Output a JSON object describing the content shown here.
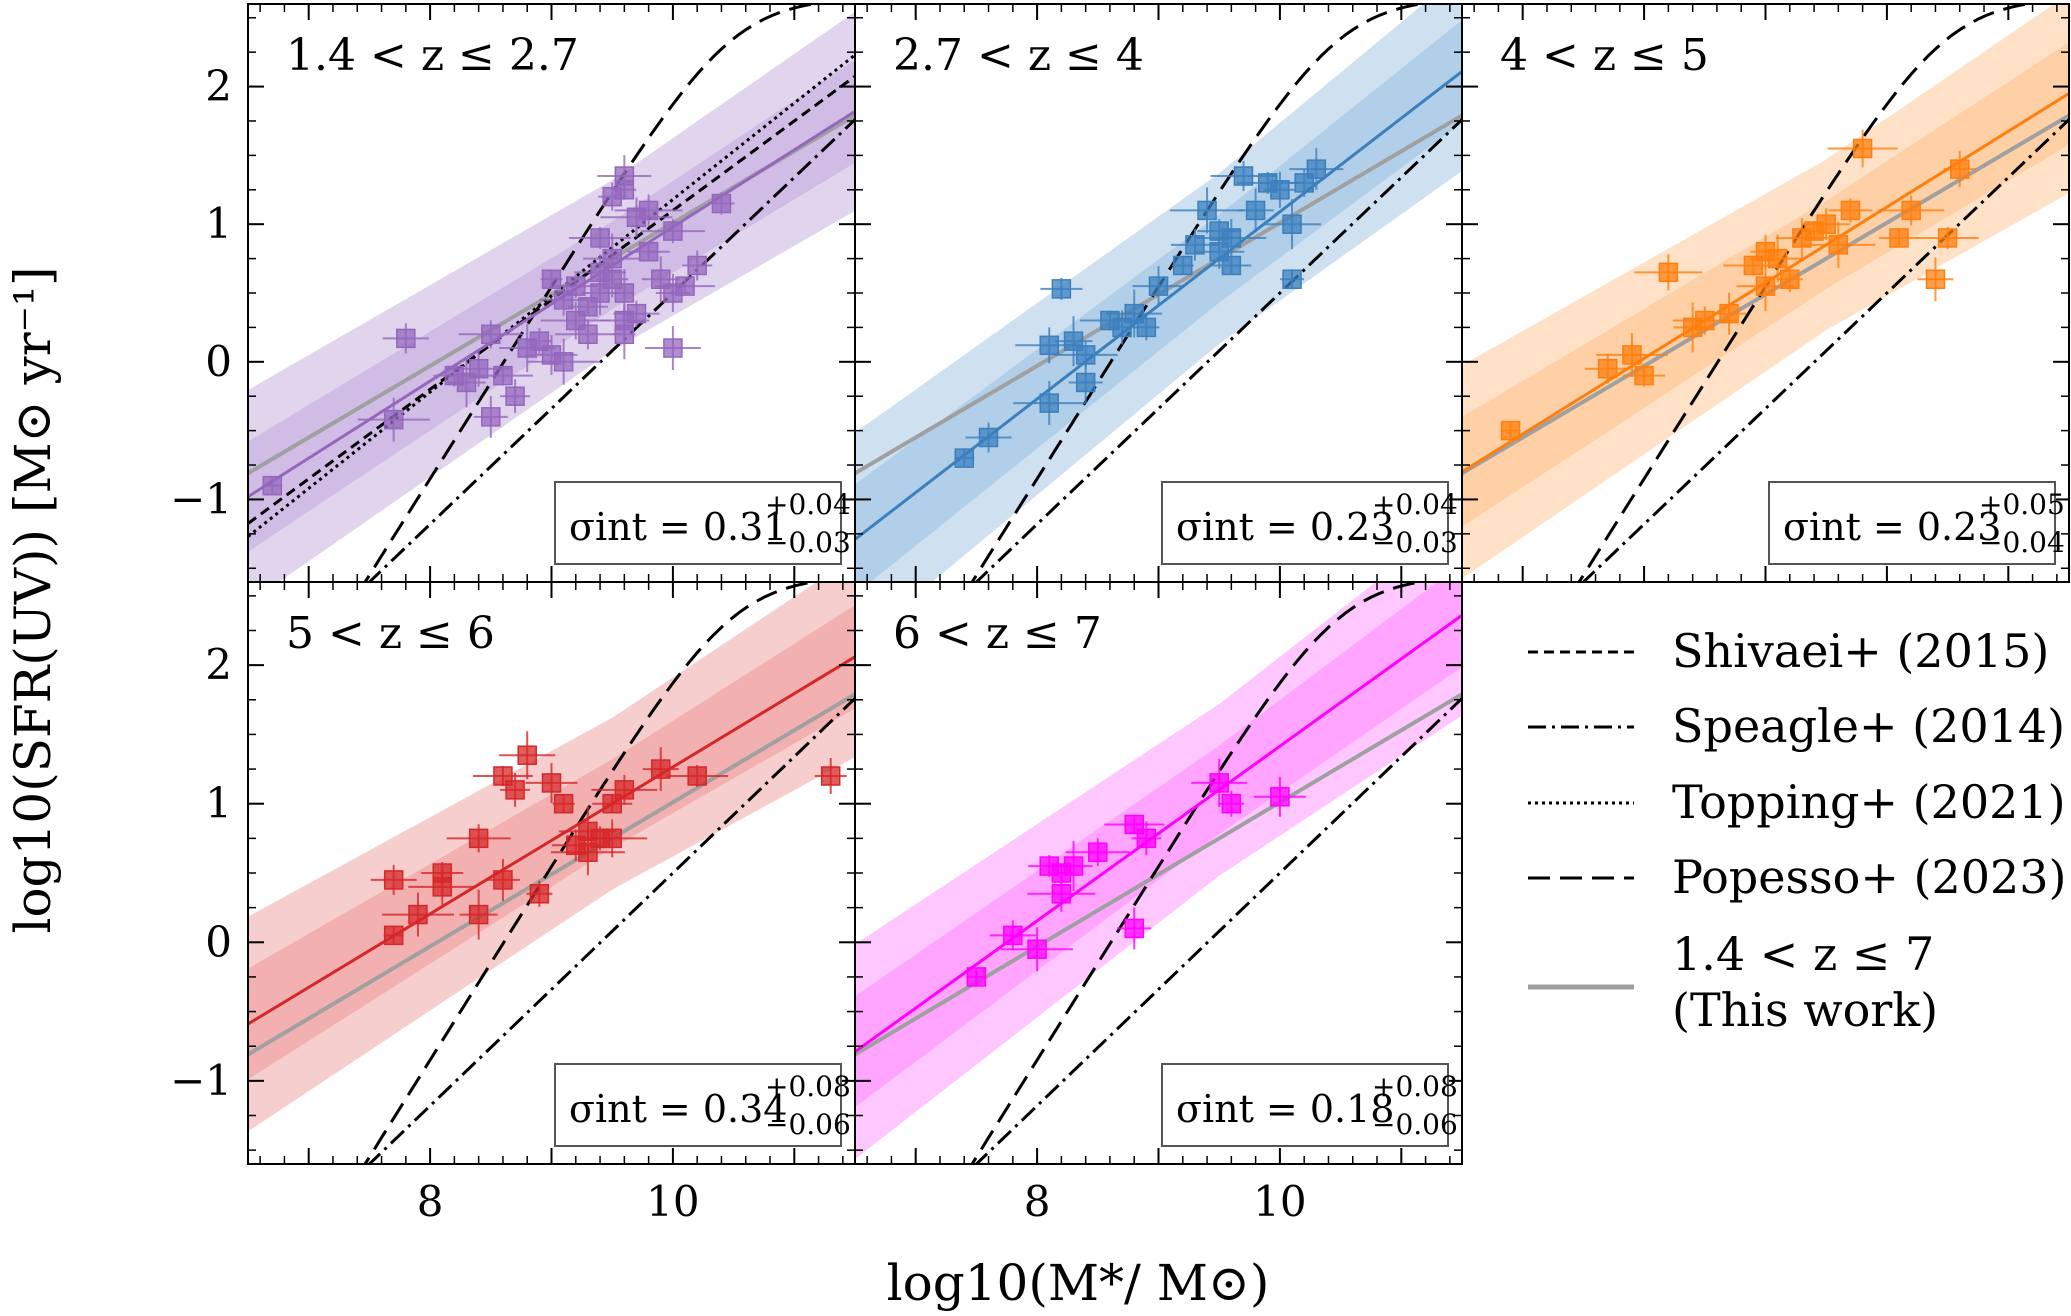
{
  "chart_data": {
    "type": "scatter",
    "xlabel": "log10(M*/ M⊙)",
    "ylabel": "log10(SFR(UV)) [M⊙ yr⁻¹]",
    "xlim": [
      6.5,
      11.5
    ],
    "ylim": [
      -1.6,
      2.6
    ],
    "x_ticks": [
      8,
      10
    ],
    "x_tick_labels": [
      "8",
      "10"
    ],
    "y_ticks": [
      -1,
      0,
      1,
      2
    ],
    "y_tick_labels": [
      "−1",
      "0",
      "1",
      "2"
    ],
    "reference_relations": [
      {
        "name": "Shivaei+ (2015)",
        "style": "short-dash"
      },
      {
        "name": "Speagle+ (2014)",
        "style": "dash-dot"
      },
      {
        "name": "Topping+ (2021)",
        "style": "dotted"
      },
      {
        "name": "Popesso+ (2023)",
        "style": "long-dash"
      }
    ],
    "this_work": {
      "label_line1": "1.4 < z ≤ 7",
      "label_line2": "(This work)",
      "color": "#a0a0a0"
    },
    "panels": [
      {
        "title": "1.4 < z ≤ 2.7",
        "color": "#9467bd",
        "band_color": "#c9b3e0",
        "sigma_value": "0.31",
        "sigma_plus": "+0.04",
        "sigma_minus": "−0.03",
        "fit": {
          "slope": 0.56,
          "intercept": 0.7,
          "pivot": 9.5
        },
        "points": [
          [
            6.7,
            -0.9
          ],
          [
            7.8,
            0.17
          ],
          [
            7.7,
            -0.42
          ],
          [
            8.2,
            -0.1
          ],
          [
            8.4,
            -0.05
          ],
          [
            8.3,
            -0.15
          ],
          [
            8.5,
            0.2
          ],
          [
            8.5,
            -0.4
          ],
          [
            8.6,
            -0.1
          ],
          [
            8.7,
            -0.25
          ],
          [
            8.8,
            0.1
          ],
          [
            8.9,
            0.15
          ],
          [
            9.0,
            0.05
          ],
          [
            9.0,
            0.6
          ],
          [
            9.1,
            0.45
          ],
          [
            9.1,
            0.0
          ],
          [
            9.2,
            0.55
          ],
          [
            9.2,
            0.3
          ],
          [
            9.3,
            0.4
          ],
          [
            9.3,
            0.2
          ],
          [
            9.4,
            0.5
          ],
          [
            9.4,
            0.9
          ],
          [
            9.5,
            0.6
          ],
          [
            9.5,
            0.75
          ],
          [
            9.5,
            1.2
          ],
          [
            9.6,
            1.35
          ],
          [
            9.6,
            1.25
          ],
          [
            9.6,
            0.3
          ],
          [
            9.6,
            0.5
          ],
          [
            9.7,
            0.35
          ],
          [
            9.7,
            1.05
          ],
          [
            9.8,
            0.8
          ],
          [
            9.8,
            1.1
          ],
          [
            9.9,
            0.6
          ],
          [
            10.0,
            0.95
          ],
          [
            10.0,
            0.5
          ],
          [
            10.1,
            0.55
          ],
          [
            10.2,
            0.7
          ],
          [
            10.0,
            0.1
          ],
          [
            10.4,
            1.15
          ],
          [
            9.4,
            0.65
          ],
          [
            9.6,
            0.2
          ]
        ]
      },
      {
        "title": "2.7 < z ≤ 4",
        "color": "#3b7fbd",
        "band_color": "#a7c8e6",
        "sigma_value": "0.23",
        "sigma_plus": "+0.04",
        "sigma_minus": "−0.03",
        "fit": {
          "slope": 0.68,
          "intercept": 0.75,
          "pivot": 9.5
        },
        "points": [
          [
            7.4,
            -0.7
          ],
          [
            7.6,
            -0.55
          ],
          [
            8.1,
            -0.3
          ],
          [
            8.2,
            0.53
          ],
          [
            8.1,
            0.12
          ],
          [
            8.3,
            0.15
          ],
          [
            8.4,
            0.05
          ],
          [
            8.4,
            -0.15
          ],
          [
            8.6,
            0.3
          ],
          [
            8.7,
            0.25
          ],
          [
            8.8,
            0.35
          ],
          [
            8.9,
            0.25
          ],
          [
            9.0,
            0.55
          ],
          [
            9.2,
            0.7
          ],
          [
            9.3,
            0.85
          ],
          [
            9.4,
            1.1
          ],
          [
            9.5,
            0.95
          ],
          [
            9.6,
            0.9
          ],
          [
            9.6,
            0.7
          ],
          [
            9.7,
            1.35
          ],
          [
            9.8,
            1.1
          ],
          [
            9.9,
            1.3
          ],
          [
            10.0,
            1.25
          ],
          [
            10.1,
            1.0
          ],
          [
            10.2,
            1.3
          ],
          [
            10.3,
            1.4
          ],
          [
            10.1,
            0.6
          ],
          [
            9.5,
            0.8
          ]
        ]
      },
      {
        "title": "4 < z ≤ 5",
        "color": "#ff7f0e",
        "band_color": "#ffc99a",
        "sigma_value": "0.23",
        "sigma_plus": "+0.05",
        "sigma_minus": "−0.04",
        "fit": {
          "slope": 0.55,
          "intercept": 0.85,
          "pivot": 9.5
        },
        "points": [
          [
            6.9,
            -0.5
          ],
          [
            7.7,
            -0.05
          ],
          [
            7.9,
            0.05
          ],
          [
            8.0,
            -0.1
          ],
          [
            8.2,
            0.65
          ],
          [
            8.4,
            0.25
          ],
          [
            8.5,
            0.3
          ],
          [
            8.7,
            0.35
          ],
          [
            8.9,
            0.7
          ],
          [
            9.0,
            0.8
          ],
          [
            9.1,
            0.75
          ],
          [
            9.2,
            0.6
          ],
          [
            9.3,
            0.9
          ],
          [
            9.4,
            0.95
          ],
          [
            9.5,
            1.0
          ],
          [
            9.6,
            0.85
          ],
          [
            9.7,
            1.1
          ],
          [
            9.8,
            1.55
          ],
          [
            10.1,
            0.9
          ],
          [
            10.2,
            1.1
          ],
          [
            10.4,
            0.6
          ],
          [
            10.5,
            0.9
          ],
          [
            10.6,
            1.4
          ],
          [
            9.0,
            0.55
          ]
        ]
      },
      {
        "title": "5 < z ≤ 6",
        "color": "#d62728",
        "band_color": "#f0a5a5",
        "sigma_value": "0.34",
        "sigma_plus": "+0.08",
        "sigma_minus": "−0.06",
        "fit": {
          "slope": 0.53,
          "intercept": 1.0,
          "pivot": 9.5
        },
        "points": [
          [
            7.7,
            0.05
          ],
          [
            7.7,
            0.45
          ],
          [
            7.9,
            0.2
          ],
          [
            8.1,
            0.5
          ],
          [
            8.1,
            0.4
          ],
          [
            8.4,
            0.2
          ],
          [
            8.4,
            0.75
          ],
          [
            8.6,
            0.45
          ],
          [
            8.6,
            1.2
          ],
          [
            8.7,
            1.1
          ],
          [
            8.8,
            1.35
          ],
          [
            8.9,
            0.35
          ],
          [
            9.0,
            1.15
          ],
          [
            9.1,
            1.0
          ],
          [
            9.2,
            0.7
          ],
          [
            9.3,
            0.65
          ],
          [
            9.4,
            0.75
          ],
          [
            9.5,
            0.75
          ],
          [
            9.5,
            1.0
          ],
          [
            9.6,
            1.1
          ],
          [
            9.9,
            1.25
          ],
          [
            10.2,
            1.2
          ],
          [
            11.3,
            1.2
          ],
          [
            9.3,
            0.8
          ]
        ]
      },
      {
        "title": "6 < z ≤ 7",
        "color": "#ff00ff",
        "band_color": "#ff99ff",
        "sigma_value": "0.18",
        "sigma_plus": "+0.08",
        "sigma_minus": "−0.06",
        "fit": {
          "slope": 0.63,
          "intercept": 1.1,
          "pivot": 9.5
        },
        "points": [
          [
            7.5,
            -0.25
          ],
          [
            7.8,
            0.05
          ],
          [
            8.0,
            -0.05
          ],
          [
            8.1,
            0.55
          ],
          [
            8.2,
            0.35
          ],
          [
            8.3,
            0.55
          ],
          [
            8.5,
            0.65
          ],
          [
            8.8,
            0.1
          ],
          [
            8.8,
            0.85
          ],
          [
            8.9,
            0.75
          ],
          [
            9.5,
            1.15
          ],
          [
            9.6,
            1.0
          ],
          [
            10.0,
            1.05
          ],
          [
            8.2,
            0.5
          ]
        ]
      }
    ]
  }
}
